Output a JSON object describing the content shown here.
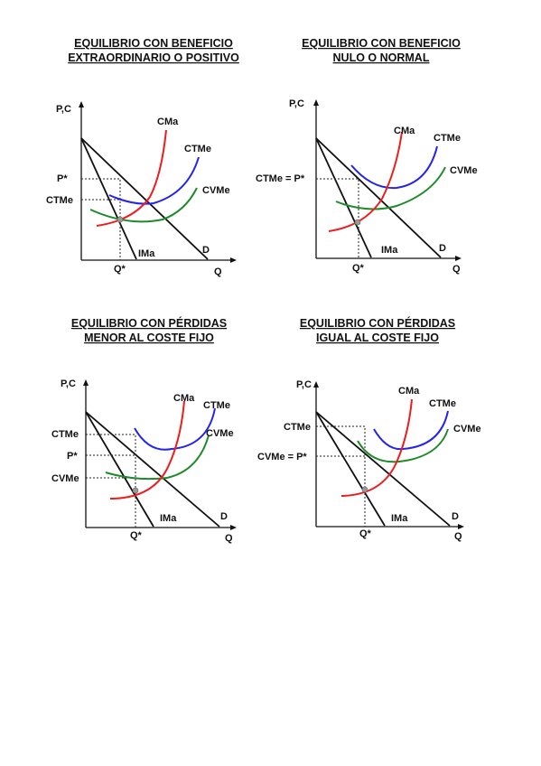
{
  "colors": {
    "cma": "#ee1c1c",
    "ctme": "#2323ee",
    "cvme": "#1f8a2a",
    "axis": "#111111",
    "point": "#999999"
  },
  "panels": [
    {
      "title1": "EQUILIBRIO CON BENEFICIO",
      "title2": "EXTRAORDINARIO O POSITIVO",
      "y_axis": "P,C",
      "x_axis": "Q",
      "q_star": "Q*",
      "d": "D",
      "ima": "IMa",
      "cma": "CMa",
      "ctme": "CTMe",
      "cvme": "CVMe",
      "y_labels": [
        "P*",
        "CTMe"
      ]
    },
    {
      "title1": "EQUILIBRIO CON BENEFICIO",
      "title2": "NULO O NORMAL",
      "y_axis": "P,C",
      "x_axis": "Q",
      "q_star": "Q*",
      "d": "D",
      "ima": "IMa",
      "cma": "CMa",
      "ctme": "CTMe",
      "cvme": "CVMe",
      "y_labels": [
        "CTMe = P*"
      ]
    },
    {
      "title1": "EQUILIBRIO CON PÉRDIDAS",
      "title2": "MENOR AL COSTE FIJO",
      "y_axis": "P,C",
      "x_axis": "Q",
      "q_star": "Q*",
      "d": "D",
      "ima": "IMa",
      "cma": "CMa",
      "ctme": "CTMe",
      "cvme": "CVMe",
      "y_labels": [
        "CTMe",
        "P*",
        "CVMe"
      ]
    },
    {
      "title1": "EQUILIBRIO CON PÉRDIDAS",
      "title2": "IGUAL AL COSTE FIJO",
      "y_axis": "P,C",
      "x_axis": "Q",
      "q_star": "Q*",
      "d": "D",
      "ima": "IMa",
      "cma": "CMa",
      "ctme": "CTMe",
      "cvme": "CVMe",
      "y_labels": [
        "CTMe",
        "CVMe = P*"
      ]
    }
  ]
}
